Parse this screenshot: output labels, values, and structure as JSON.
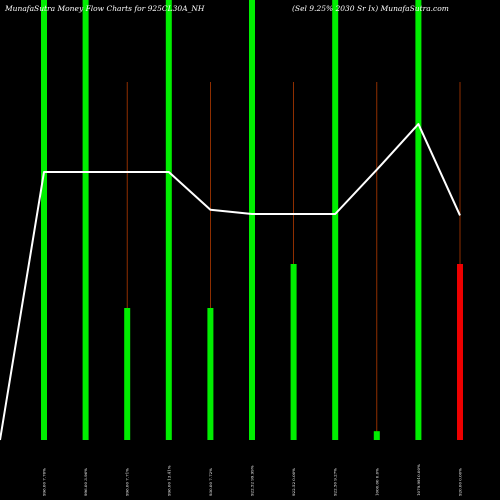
{
  "chart_data": {
    "type": "bar",
    "title_left": "MunafaSutra  Money Flow  Charts for 925CL30A_NH",
    "title_right": "(Sel 9.25% 2030  Sr Ix) MunafaSutra.com",
    "categories": [
      "996.00 7.76%",
      "996.00 3.96%",
      "996.00 7.71%",
      "996.00 13.41%",
      "930.00 7.72%",
      "922.52 99.99%",
      "922.52 0.00%",
      "922.50 9.27%",
      "1000.00 0.0%",
      "1079.9910.00%",
      "920.00 0.00%"
    ],
    "series": [
      {
        "kind": "bar",
        "values": [
          100,
          100,
          30,
          100,
          30,
          100,
          40,
          100,
          2,
          100,
          40
        ],
        "colors": [
          "#00ee00",
          "#00ee00",
          "#00ee00",
          "#00ee00",
          "#00ee00",
          "#00ee00",
          "#00ee00",
          "#00ee00",
          "#00ee00",
          "#00ee00",
          "#ee0000"
        ]
      },
      {
        "kind": "line",
        "values": [
          996,
          996,
          996,
          996,
          930,
          922.52,
          922.52,
          922.5,
          1000,
          1079.99,
          920
        ],
        "color": "#ffffff"
      }
    ],
    "ylim": [
      0,
      100
    ],
    "grid": false,
    "bar_stem_color": "#b33a00",
    "background": "#000000"
  }
}
